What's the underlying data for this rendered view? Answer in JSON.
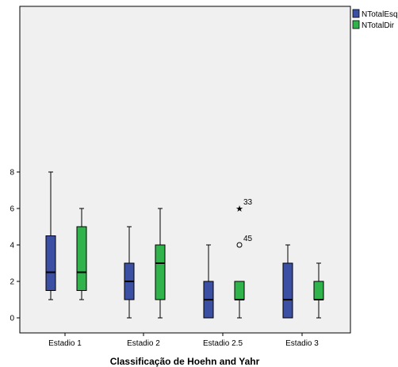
{
  "chart_data": {
    "type": "boxplot",
    "xlabel": "Classificação de Hoehn and Yahr",
    "ylabel": "",
    "ylim": [
      0,
      8
    ],
    "yticks": [
      0,
      2,
      4,
      6,
      8
    ],
    "categories": [
      "Estadio 1",
      "Estadio 2",
      "Estadio 2.5",
      "Estadio 3"
    ],
    "grid": false,
    "legend_position": "top-right",
    "series": [
      {
        "name": "NTotalEsq",
        "color": "#3b4fa3",
        "boxes": [
          {
            "min": 1,
            "q1": 1.5,
            "median": 2.5,
            "q3": 4.5,
            "max": 8
          },
          {
            "min": 0,
            "q1": 1,
            "median": 2,
            "q3": 3,
            "max": 5
          },
          {
            "min": 0,
            "q1": 0,
            "median": 1,
            "q3": 2,
            "max": 4
          },
          {
            "min": 0,
            "q1": 0,
            "median": 1,
            "q3": 3,
            "max": 4
          }
        ]
      },
      {
        "name": "NTotalDir",
        "color": "#2fb34a",
        "boxes": [
          {
            "min": 1,
            "q1": 1.5,
            "median": 2.5,
            "q3": 5,
            "max": 6
          },
          {
            "min": 0,
            "q1": 1,
            "median": 3,
            "q3": 4,
            "max": 6
          },
          {
            "min": 0,
            "q1": 1,
            "median": 1,
            "q3": 2,
            "max": 2
          },
          {
            "min": 0,
            "q1": 1,
            "median": 1,
            "q3": 2,
            "max": 3
          }
        ]
      }
    ],
    "outliers": [
      {
        "category": "Estadio 2.5",
        "series": "NTotalDir",
        "value": 6,
        "marker": "star",
        "label": "33"
      },
      {
        "category": "Estadio 2.5",
        "series": "NTotalDir",
        "value": 4,
        "marker": "circle",
        "label": "45"
      }
    ]
  }
}
